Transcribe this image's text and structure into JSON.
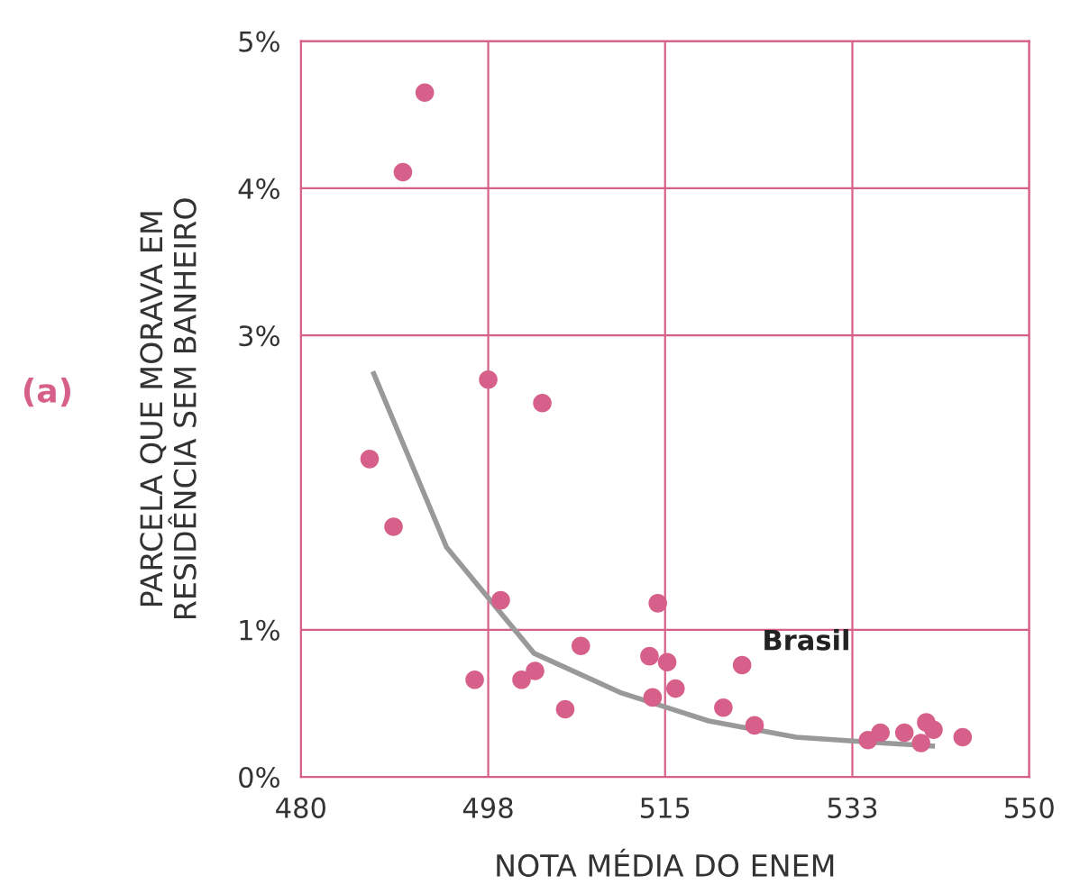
{
  "chart_data": {
    "type": "scatter",
    "xlabel": "NOTA MÉDIA DO ENEM",
    "ylabel": "PARCELA QUE MORAVA EM\nRESIDÊNCIA SEM BANHEIRO",
    "xlim": [
      480,
      550
    ],
    "xticks": [
      480,
      498,
      515,
      533,
      550
    ],
    "ylim": [
      0,
      5
    ],
    "yticks": [
      {
        "value": 0,
        "label": "0%"
      },
      {
        "value": 1,
        "label": "1%"
      },
      {
        "value": 3,
        "label": "3%"
      },
      {
        "value": 4,
        "label": "4%"
      },
      {
        "value": 5,
        "label": "5%"
      }
    ],
    "grid": true,
    "series": [
      {
        "color": "#d6608a",
        "marker": "circle",
        "x": [
          491.9,
          489.8,
          486.6,
          488.9,
          498.0,
          503.2,
          499.2,
          496.7,
          501.2,
          502.5,
          505.4,
          506.9,
          514.3,
          513.5,
          513.8,
          515.2,
          516.0,
          520.6,
          522.4,
          523.6,
          534.5,
          535.7,
          538.0,
          539.6,
          540.1,
          540.8,
          543.6
        ],
        "values": [
          4.65,
          4.11,
          2.16,
          1.7,
          2.7,
          2.54,
          1.2,
          0.66,
          0.66,
          0.72,
          0.46,
          0.89,
          1.18,
          0.82,
          0.54,
          0.78,
          0.6,
          0.47,
          0.76,
          0.35,
          0.25,
          0.3,
          0.3,
          0.23,
          0.37,
          0.32,
          0.27
        ]
      },
      {
        "type": "line",
        "marker": "none",
        "color": "#999999",
        "x": [
          487,
          494,
          502.4,
          510.8,
          519.2,
          527.6,
          536,
          540.7
        ],
        "values": [
          2.74,
          1.56,
          0.84,
          0.57,
          0.38,
          0.27,
          0.23,
          0.21
        ]
      }
    ],
    "annotations": [
      {
        "text": "Brasil",
        "x": 522.4,
        "y": 0.76
      },
      "(a)"
    ]
  }
}
